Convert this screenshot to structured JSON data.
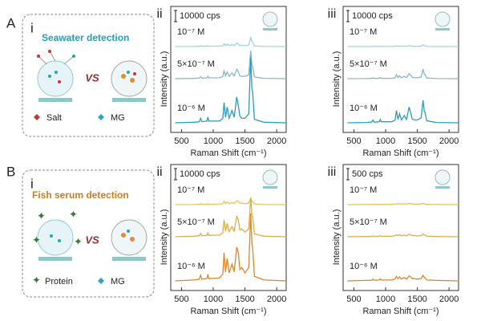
{
  "chart_data": [
    {
      "type": "line",
      "panel_label": "ii",
      "scale_bar": {
        "value": 10000,
        "label": "10000 cps"
      },
      "x_label": "Raman Shift (cm⁻¹)",
      "y_label": "Intensity (a.u.)",
      "xlim": [
        330,
        2150
      ],
      "xticks": [
        500,
        1000,
        1500,
        2000
      ],
      "x": [
        400,
        700,
        780,
        800,
        820,
        900,
        915,
        930,
        1100,
        1150,
        1170,
        1195,
        1220,
        1250,
        1295,
        1330,
        1370,
        1395,
        1420,
        1450,
        1500,
        1560,
        1590,
        1610,
        1620,
        1650,
        1800,
        2150
      ],
      "series": [
        {
          "name": "10⁻⁷ M",
          "color": "#9fd3df",
          "values": [
            0,
            100,
            200,
            700,
            200,
            300,
            800,
            300,
            400,
            700,
            2500,
            900,
            2200,
            800,
            1800,
            900,
            3000,
            2200,
            900,
            800,
            800,
            1200,
            8500,
            4200,
            4000,
            600,
            100,
            0
          ]
        },
        {
          "name": "5×10⁻⁷ M",
          "color": "#86b6cc",
          "values": [
            0,
            200,
            500,
            1700,
            500,
            700,
            2200,
            700,
            800,
            1800,
            7000,
            2500,
            6000,
            2000,
            5000,
            2500,
            8500,
            6000,
            2500,
            2000,
            2000,
            3500,
            25000,
            12000,
            11000,
            1500,
            300,
            0
          ]
        },
        {
          "name": "10⁻⁶ M",
          "color": "#2a9db8",
          "values": [
            0,
            500,
            1000,
            4000,
            1000,
            1500,
            5000,
            1500,
            1500,
            4000,
            18000,
            5000,
            14000,
            4000,
            11000,
            5000,
            23000,
            15000,
            6000,
            4000,
            4000,
            8000,
            58000,
            30000,
            28000,
            3000,
            500,
            0
          ]
        }
      ]
    },
    {
      "type": "line",
      "panel_label": "iii",
      "scale_bar": {
        "value": 10000,
        "label": "10000 cps"
      },
      "x_label": "Raman Shift (cm⁻¹)",
      "y_label": "Intensity (a.u.)",
      "xlim": [
        330,
        2150
      ],
      "xticks": [
        500,
        1000,
        1500,
        2000
      ],
      "x": [
        400,
        700,
        780,
        800,
        820,
        900,
        915,
        930,
        1100,
        1150,
        1170,
        1195,
        1220,
        1250,
        1295,
        1330,
        1370,
        1395,
        1420,
        1450,
        1500,
        1560,
        1590,
        1610,
        1620,
        1650,
        1800,
        2150
      ],
      "series": [
        {
          "name": "10⁻⁷ M",
          "color": "#9fd3df",
          "values": [
            0,
            0,
            50,
            200,
            50,
            50,
            200,
            50,
            50,
            200,
            600,
            200,
            500,
            200,
            400,
            200,
            800,
            500,
            200,
            200,
            200,
            300,
            1500,
            700,
            700,
            100,
            0,
            0
          ]
        },
        {
          "name": "5×10⁻⁷ M",
          "color": "#86b6cc",
          "values": [
            0,
            100,
            200,
            800,
            200,
            300,
            1000,
            300,
            300,
            800,
            3500,
            1000,
            2600,
            800,
            2000,
            1000,
            4500,
            3000,
            1200,
            800,
            800,
            1500,
            8500,
            4000,
            3800,
            600,
            100,
            0
          ]
        },
        {
          "name": "10⁻⁶ M",
          "color": "#2a9db8",
          "values": [
            0,
            300,
            600,
            2500,
            600,
            900,
            3000,
            900,
            900,
            2500,
            11000,
            3000,
            8000,
            2500,
            6500,
            3000,
            14000,
            9000,
            3500,
            2500,
            2500,
            4500,
            20000,
            10000,
            9500,
            1800,
            300,
            0
          ]
        }
      ]
    },
    {
      "type": "line",
      "panel_label": "ii",
      "scale_bar": {
        "value": 10000,
        "label": "10000 cps"
      },
      "x_label": "Raman Shift (cm⁻¹)",
      "y_label": "Intensity (a.u.)",
      "xlim": [
        330,
        2150
      ],
      "xticks": [
        500,
        1000,
        1500,
        2000
      ],
      "x": [
        400,
        700,
        780,
        800,
        820,
        900,
        915,
        930,
        1100,
        1150,
        1170,
        1195,
        1220,
        1250,
        1295,
        1330,
        1370,
        1395,
        1420,
        1450,
        1500,
        1560,
        1590,
        1610,
        1620,
        1650,
        1800,
        2150
      ],
      "series": [
        {
          "name": "10⁻⁷ M",
          "color": "#e6c25a",
          "values": [
            0,
            100,
            200,
            700,
            200,
            300,
            800,
            300,
            400,
            800,
            3000,
            1000,
            2400,
            900,
            1800,
            1000,
            3500,
            3000,
            1200,
            1400,
            800,
            1400,
            5500,
            3000,
            2800,
            500,
            100,
            0
          ]
        },
        {
          "name": "5×10⁻⁷ M",
          "color": "#dcae48",
          "values": [
            0,
            500,
            900,
            3000,
            900,
            1200,
            3500,
            1200,
            1500,
            3500,
            15000,
            5000,
            12000,
            4500,
            9000,
            5000,
            18000,
            15000,
            6000,
            7000,
            4000,
            7000,
            35000,
            19000,
            18000,
            2500,
            500,
            0
          ]
        },
        {
          "name": "10⁻⁶ M",
          "color": "#d9882a",
          "values": [
            0,
            800,
            1500,
            5000,
            1500,
            2000,
            6000,
            2000,
            2500,
            6000,
            25000,
            8000,
            20000,
            7000,
            15000,
            8000,
            30000,
            25000,
            10000,
            12000,
            7000,
            12000,
            60000,
            32000,
            30000,
            4000,
            800,
            0
          ]
        }
      ]
    },
    {
      "type": "line",
      "panel_label": "iii",
      "scale_bar": {
        "value": 500,
        "label": "500 cps"
      },
      "x_label": "Raman Shift (cm⁻¹)",
      "y_label": "Intensity (a.u.)",
      "xlim": [
        330,
        2150
      ],
      "xticks": [
        500,
        1000,
        1500,
        2000
      ],
      "x": [
        400,
        700,
        780,
        800,
        820,
        900,
        915,
        930,
        1100,
        1150,
        1170,
        1195,
        1220,
        1250,
        1295,
        1330,
        1370,
        1395,
        1420,
        1450,
        1500,
        1560,
        1590,
        1610,
        1620,
        1650,
        1800,
        2150
      ],
      "series": [
        {
          "name": "10⁻⁷ M",
          "color": "#e6c25a",
          "values": [
            0,
            5,
            8,
            20,
            8,
            10,
            20,
            10,
            10,
            20,
            50,
            25,
            45,
            20,
            35,
            20,
            55,
            45,
            25,
            25,
            20,
            25,
            60,
            35,
            35,
            10,
            5,
            0
          ]
        },
        {
          "name": "5×10⁻⁷ M",
          "color": "#dcae48",
          "values": [
            0,
            10,
            15,
            40,
            15,
            20,
            45,
            20,
            20,
            45,
            100,
            50,
            90,
            40,
            75,
            40,
            110,
            90,
            50,
            50,
            40,
            50,
            120,
            75,
            70,
            20,
            10,
            0
          ]
        },
        {
          "name": "10⁻⁶ M",
          "color": "#d9882a",
          "values": [
            0,
            20,
            30,
            80,
            30,
            40,
            90,
            40,
            40,
            90,
            200,
            100,
            180,
            80,
            150,
            80,
            220,
            180,
            100,
            100,
            80,
            100,
            250,
            150,
            140,
            40,
            20,
            0
          ]
        }
      ]
    }
  ],
  "rows": [
    {
      "label": "A",
      "panel": "i",
      "title": "Seawater detection",
      "vs": "VS",
      "legend": [
        "Salt",
        "MG"
      ]
    },
    {
      "label": "B",
      "panel": "i",
      "title": "Fish serum detection",
      "vs": "VS",
      "legend": [
        "Protein",
        "MG"
      ]
    }
  ]
}
